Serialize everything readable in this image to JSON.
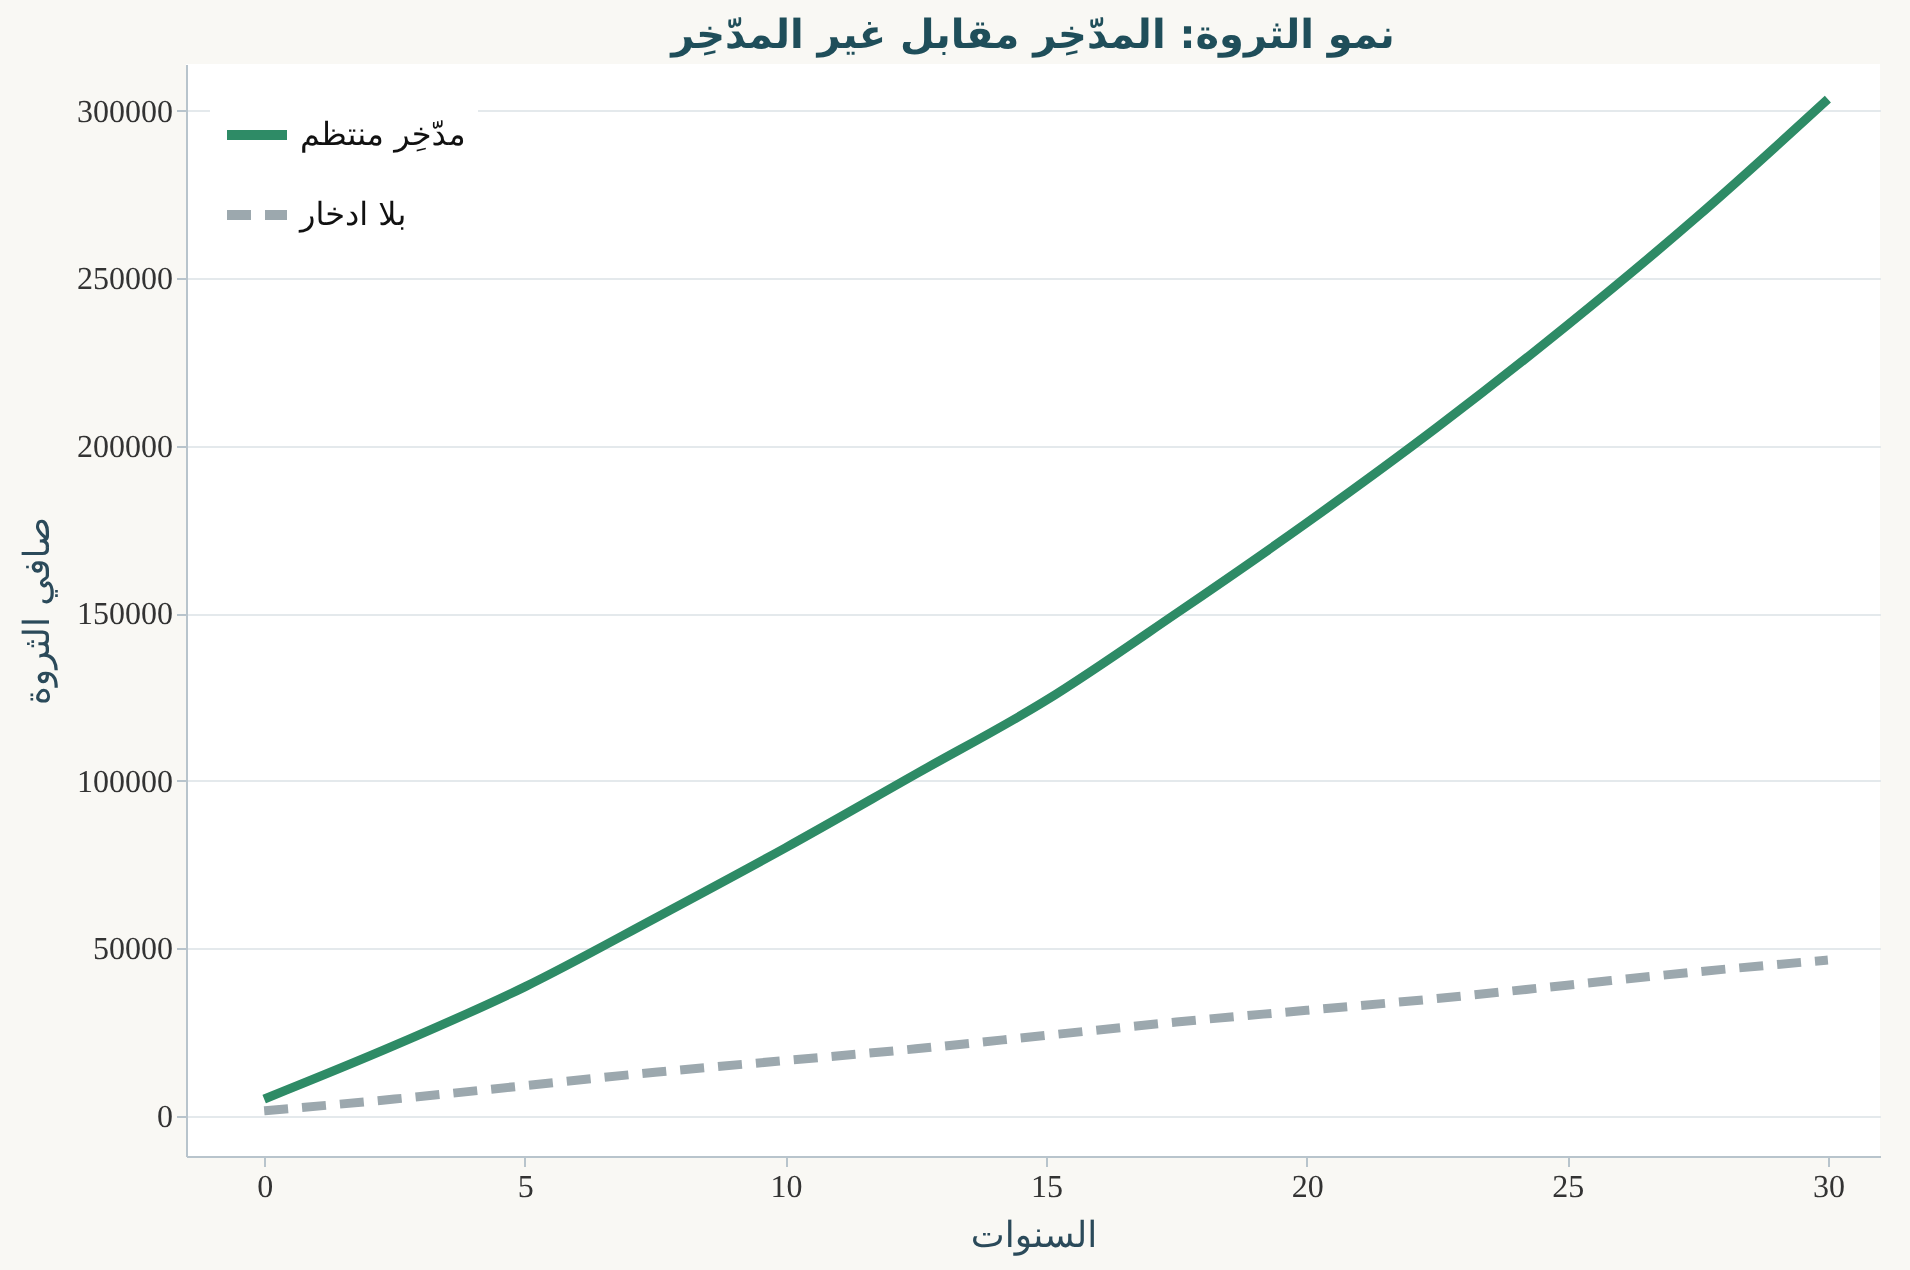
{
  "chart_data": {
    "type": "line",
    "title": "نمو الثروة: المدّخِر مقابل غير المدّخِر",
    "xlabel": "السنوات",
    "ylabel": "صافي الثروة",
    "x": [
      0,
      2.5,
      5,
      7.5,
      10,
      12.5,
      15,
      17.5,
      20,
      22.5,
      25,
      27.5,
      30
    ],
    "series": [
      {
        "name": "مدّخِر منتظم",
        "color": "#2e8b66",
        "line_style": "solid",
        "values": [
          5000,
          21000,
          38500,
          59000,
          80000,
          102000,
          124000,
          150000,
          177000,
          205500,
          236000,
          268500,
          303500
        ]
      },
      {
        "name": "بلا ادخار",
        "color": "#9ca8ae",
        "line_style": "dashed",
        "values": [
          1500,
          5000,
          9000,
          13000,
          16500,
          20000,
          24000,
          28000,
          31500,
          35000,
          39000,
          43000,
          46500
        ]
      }
    ],
    "xlim": [
      -1.5,
      31
    ],
    "xticks": [
      0,
      5,
      10,
      15,
      20,
      25,
      30
    ],
    "ylim": [
      -12000,
      314000
    ],
    "yticks": [
      0,
      50000,
      100000,
      150000,
      200000,
      250000,
      300000
    ],
    "grid": "y",
    "legend": "top left",
    "marker": "none"
  }
}
